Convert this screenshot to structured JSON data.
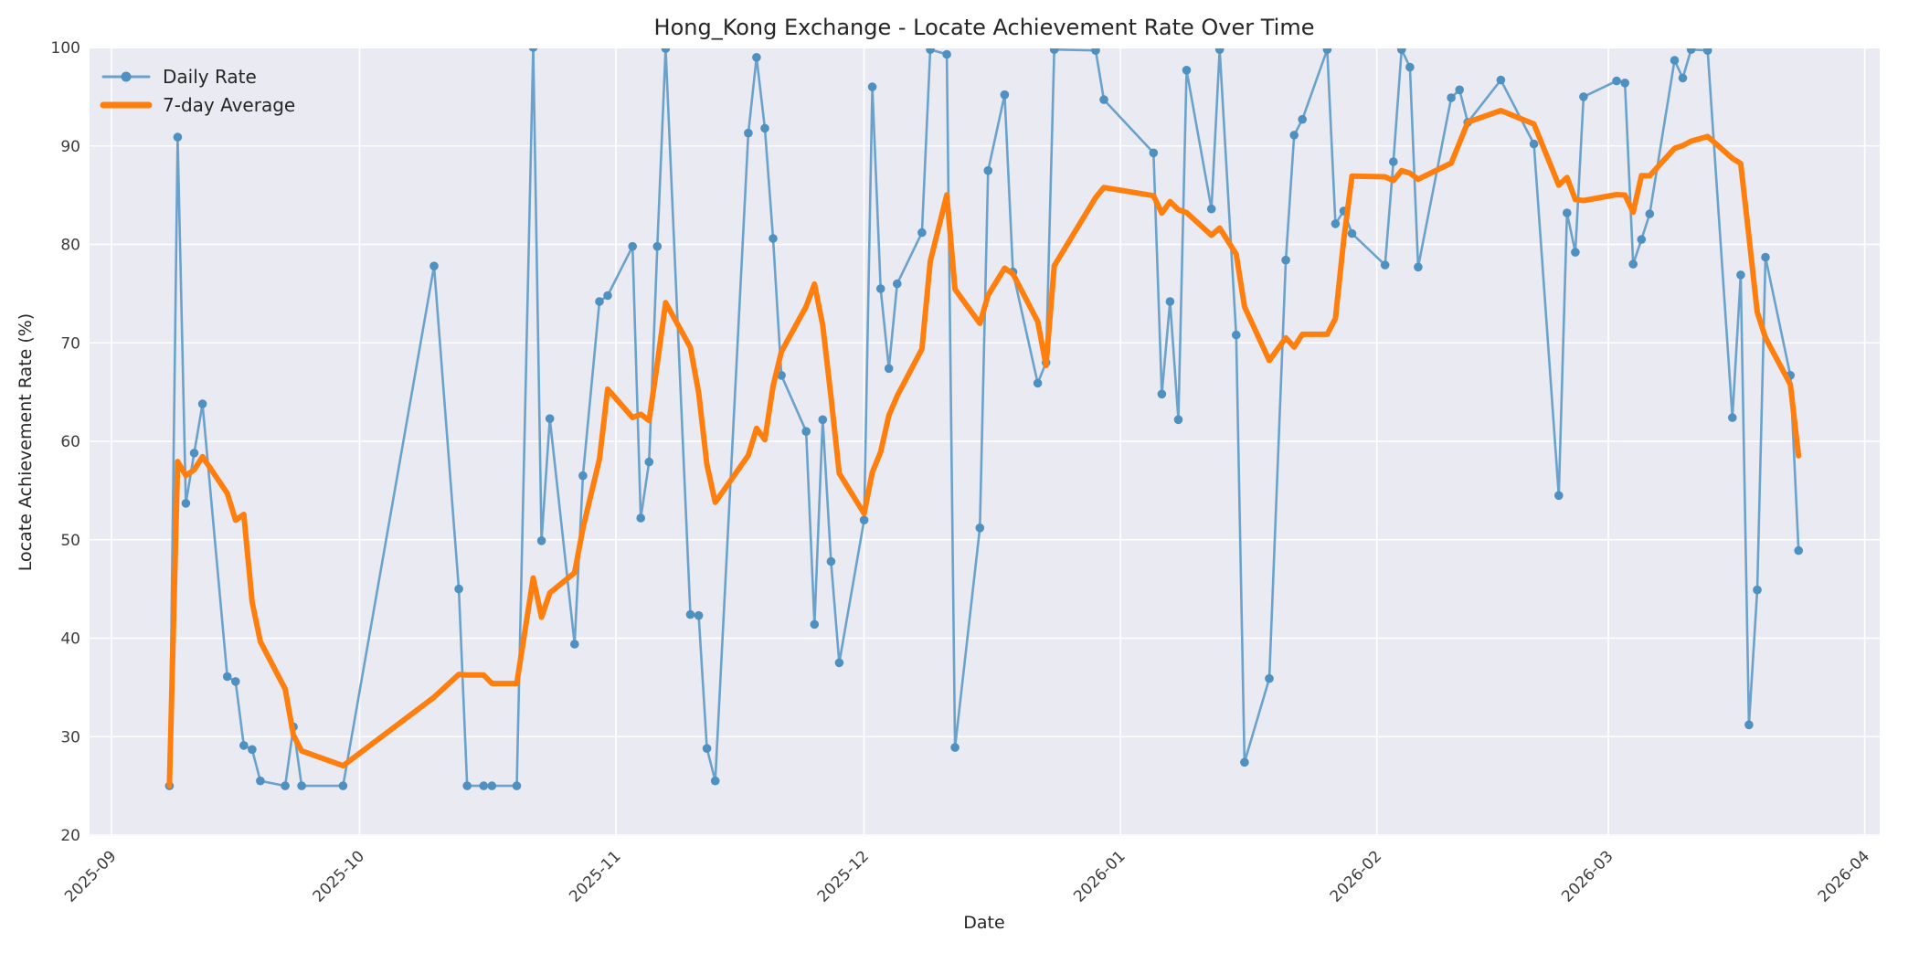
{
  "window": {
    "title": "Hong_Kong Exchange - Locate Achievement Rate Over Time"
  },
  "chart_data": {
    "type": "line",
    "title": "Hong_Kong Exchange - Locate Achievement Rate Over Time",
    "xlabel": "Date",
    "ylabel": "Locate Achievement Rate (%)",
    "ylim": [
      20,
      100
    ],
    "yticks": [
      20,
      30,
      40,
      50,
      60,
      70,
      80,
      90,
      100
    ],
    "xtick_labels": [
      "2025-09",
      "2025-10",
      "2025-11",
      "2025-12",
      "2026-01",
      "2026-02",
      "2026-03",
      "2026-04"
    ],
    "grid": true,
    "plot_background": "#eaeaf2",
    "grid_color": "#ffffff",
    "legend_position": "upper-left",
    "legend": [
      "Daily Rate",
      "7-day Average"
    ],
    "series": [
      {
        "name": "Daily Rate",
        "color": "#6aa2cc",
        "marker_color": "#4e90c0",
        "marker": "circle",
        "x": [
          "2025-09-08",
          "2025-09-09",
          "2025-09-10",
          "2025-09-11",
          "2025-09-12",
          "2025-09-15",
          "2025-09-16",
          "2025-09-17",
          "2025-09-18",
          "2025-09-19",
          "2025-09-22",
          "2025-09-23",
          "2025-09-24",
          "2025-09-29",
          "2025-10-10",
          "2025-10-13",
          "2025-10-14",
          "2025-10-16",
          "2025-10-17",
          "2025-10-20",
          "2025-10-22",
          "2025-10-23",
          "2025-10-24",
          "2025-10-27",
          "2025-10-28",
          "2025-10-30",
          "2025-10-31",
          "2025-11-03",
          "2025-11-04",
          "2025-11-05",
          "2025-11-06",
          "2025-11-07",
          "2025-11-10",
          "2025-11-11",
          "2025-11-12",
          "2025-11-13",
          "2025-11-17",
          "2025-11-18",
          "2025-11-19",
          "2025-11-20",
          "2025-11-21",
          "2025-11-24",
          "2025-11-25",
          "2025-11-26",
          "2025-11-27",
          "2025-11-28",
          "2025-12-01",
          "2025-12-02",
          "2025-12-03",
          "2025-12-04",
          "2025-12-05",
          "2025-12-08",
          "2025-12-09",
          "2025-12-11",
          "2025-12-12",
          "2025-12-15",
          "2025-12-16",
          "2025-12-18",
          "2025-12-19",
          "2025-12-22",
          "2025-12-23",
          "2025-12-24",
          "2025-12-29",
          "2025-12-30",
          "2026-01-05",
          "2026-01-06",
          "2026-01-07",
          "2026-01-08",
          "2026-01-09",
          "2026-01-12",
          "2026-01-13",
          "2026-01-15",
          "2026-01-16",
          "2026-01-19",
          "2026-01-21",
          "2026-01-22",
          "2026-01-23",
          "2026-01-26",
          "2026-01-27",
          "2026-01-28",
          "2026-01-29",
          "2026-02-02",
          "2026-02-03",
          "2026-02-04",
          "2026-02-05",
          "2026-02-06",
          "2026-02-10",
          "2026-02-11",
          "2026-02-12",
          "2026-02-16",
          "2026-02-20",
          "2026-02-23",
          "2026-02-24",
          "2026-02-25",
          "2026-02-26",
          "2026-03-02",
          "2026-03-03",
          "2026-03-04",
          "2026-03-05",
          "2026-03-06",
          "2026-03-09",
          "2026-03-10",
          "2026-03-11",
          "2026-03-13",
          "2026-03-16",
          "2026-03-17",
          "2026-03-18",
          "2026-03-19",
          "2026-03-20",
          "2026-03-23",
          "2026-03-24"
        ],
        "y": [
          25.0,
          90.9,
          53.7,
          58.8,
          63.8,
          36.1,
          35.6,
          29.1,
          28.7,
          25.5,
          25.0,
          31.0,
          25.0,
          25.0,
          77.8,
          45.0,
          25.0,
          25.0,
          25.0,
          25.0,
          100.0,
          49.9,
          62.3,
          39.4,
          56.5,
          74.2,
          74.8,
          79.8,
          52.2,
          57.9,
          79.8,
          99.9,
          42.4,
          42.3,
          28.8,
          25.5,
          91.3,
          99.0,
          91.8,
          80.6,
          66.7,
          61.0,
          41.4,
          62.2,
          47.8,
          37.5,
          52.0,
          96.0,
          75.5,
          67.4,
          76.0,
          81.2,
          99.8,
          99.3,
          28.9,
          51.2,
          87.5,
          95.2,
          77.2,
          65.9,
          68.0,
          99.8,
          99.7,
          94.7,
          89.3,
          64.8,
          74.2,
          62.2,
          97.7,
          83.6,
          99.8,
          70.8,
          27.4,
          35.9,
          78.4,
          91.1,
          92.7,
          99.8,
          82.1,
          83.4,
          81.1,
          77.9,
          88.4,
          99.8,
          98.0,
          77.7,
          94.9,
          95.7,
          92.4,
          96.7,
          90.2,
          54.5,
          83.2,
          79.2,
          95.0,
          96.6,
          96.4,
          78.0,
          80.5,
          83.1,
          98.7,
          96.9,
          99.8,
          99.7,
          62.4,
          76.9,
          31.2,
          44.9,
          78.7,
          66.7,
          48.9
        ]
      },
      {
        "name": "7-day Average",
        "color": "#ff7f0e",
        "derived": "rolling mean of the last 7 observations of Daily Rate (min_periods=1)"
      }
    ]
  }
}
